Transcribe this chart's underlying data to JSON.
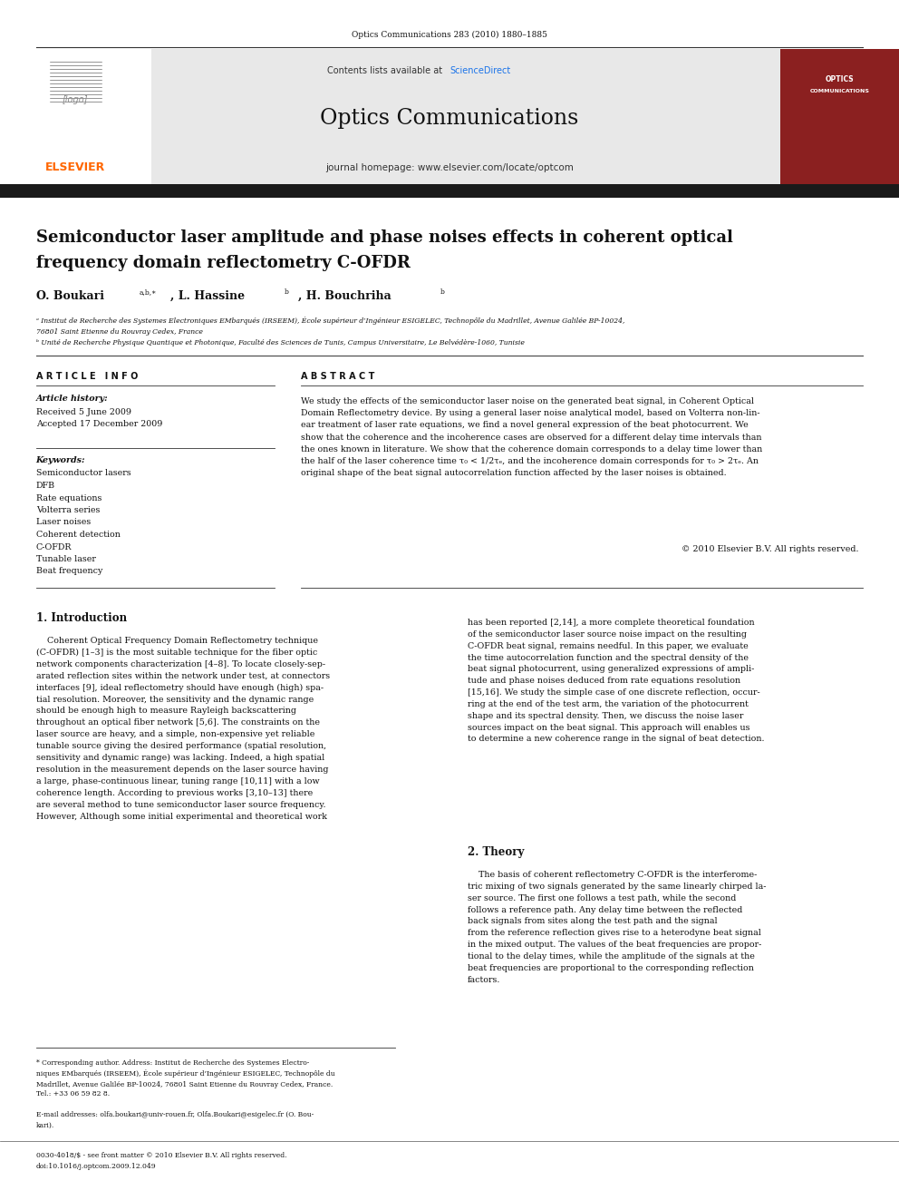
{
  "page_width": 9.92,
  "page_height": 13.23,
  "background_color": "#ffffff",
  "journal_ref": "Optics Communications 283 (2010) 1880–1885",
  "header_bg": "#e8e8e8",
  "elsevier_color": "#ff6600",
  "cover_bg": "#8b2020",
  "dark_bar_color": "#1a1a1a",
  "keywords": [
    "Semiconductor lasers",
    "DFB",
    "Rate equations",
    "Volterra series",
    "Laser noises",
    "Coherent detection",
    "C-OFDR",
    "Tunable laser",
    "Beat frequency"
  ]
}
